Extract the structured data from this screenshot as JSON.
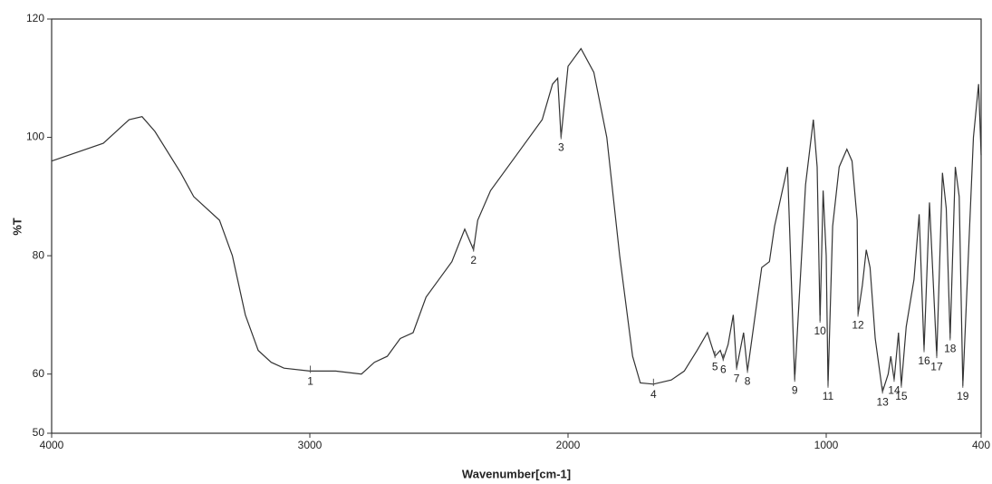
{
  "chart_data": {
    "type": "line",
    "xlabel": "Wavenumber[cm-1]",
    "ylabel": "%T",
    "xlim": [
      4000,
      400
    ],
    "ylim": [
      50,
      120
    ],
    "xticks": [
      4000,
      3000,
      2000,
      1000,
      400
    ],
    "yticks": [
      50,
      60,
      80,
      100,
      120
    ],
    "grid": false,
    "series": [
      {
        "color": "#333333",
        "x": [
          4000,
          3800,
          3700,
          3650,
          3600,
          3500,
          3450,
          3350,
          3300,
          3250,
          3200,
          3150,
          3100,
          3000,
          2900,
          2800,
          2750,
          2700,
          2650,
          2600,
          2550,
          2500,
          2450,
          2400,
          2366,
          2350,
          2300,
          2200,
          2100,
          2060,
          2040,
          2027,
          2000,
          1950,
          1900,
          1850,
          1800,
          1750,
          1720,
          1669,
          1600,
          1550,
          1500,
          1460,
          1431,
          1410,
          1399,
          1380,
          1360,
          1347,
          1320,
          1305,
          1250,
          1220,
          1200,
          1150,
          1122,
          1080,
          1050,
          1035,
          1024,
          1012,
          1000,
          993,
          975,
          950,
          920,
          900,
          880,
          877,
          860,
          845,
          830,
          810,
          782,
          760,
          750,
          737,
          720,
          709,
          690,
          660,
          640,
          621,
          600,
          572,
          550,
          535,
          520,
          500,
          485,
          471,
          430,
          410,
          400
        ],
        "values": [
          96,
          99,
          103,
          103.5,
          101,
          94,
          90,
          86,
          80,
          70,
          64,
          62,
          61,
          60.5,
          60.5,
          60,
          62,
          63,
          66,
          67,
          73,
          76,
          79,
          84.5,
          81,
          86,
          91,
          97,
          103,
          109,
          110,
          100,
          112,
          115,
          111,
          100,
          80,
          63,
          58.5,
          58.3,
          59,
          60.5,
          64,
          67,
          63,
          64,
          62.5,
          65,
          70,
          61,
          67,
          60.5,
          78,
          79,
          85,
          95,
          59,
          92,
          103,
          95,
          69,
          91,
          80,
          58,
          85,
          95,
          98,
          96,
          86,
          70,
          75,
          81,
          78,
          66,
          57,
          60,
          63,
          59,
          67,
          58,
          68,
          76,
          87,
          64,
          89,
          63,
          94,
          88,
          66,
          95,
          90,
          58,
          100,
          109,
          97
        ]
      }
    ],
    "peaks": [
      {
        "label": "1",
        "x": 2998,
        "y": 60.5
      },
      {
        "label": "2",
        "x": 2366,
        "y": 81
      },
      {
        "label": "3",
        "x": 2027,
        "y": 100
      },
      {
        "label": "4",
        "x": 1669,
        "y": 58.3
      },
      {
        "label": "5",
        "x": 1431,
        "y": 63
      },
      {
        "label": "6",
        "x": 1399,
        "y": 62.5
      },
      {
        "label": "7",
        "x": 1347,
        "y": 61
      },
      {
        "label": "8",
        "x": 1305,
        "y": 60.5
      },
      {
        "label": "9",
        "x": 1122,
        "y": 59
      },
      {
        "label": "10",
        "x": 1024,
        "y": 69
      },
      {
        "label": "11",
        "x": 993,
        "y": 58
      },
      {
        "label": "12",
        "x": 877,
        "y": 70
      },
      {
        "label": "13",
        "x": 782,
        "y": 57
      },
      {
        "label": "14",
        "x": 737,
        "y": 59
      },
      {
        "label": "15",
        "x": 709,
        "y": 58
      },
      {
        "label": "16",
        "x": 621,
        "y": 64
      },
      {
        "label": "17",
        "x": 572,
        "y": 63
      },
      {
        "label": "18",
        "x": 520,
        "y": 66
      },
      {
        "label": "19",
        "x": 471,
        "y": 58
      }
    ]
  }
}
